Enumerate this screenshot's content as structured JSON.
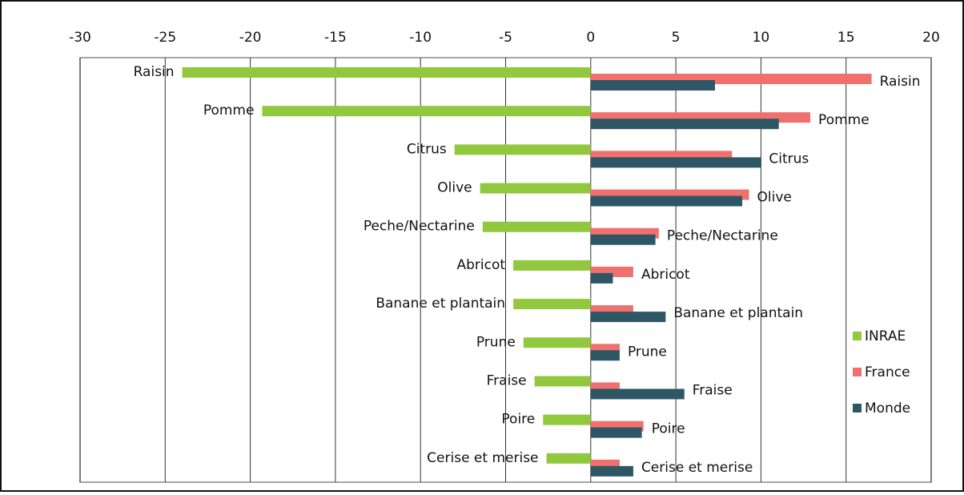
{
  "chart_data": {
    "type": "barh",
    "categories": [
      "Raisin",
      "Pomme",
      "Citrus",
      "Olive",
      "Peche/Nectarine",
      "Abricot",
      "Banane et plantain",
      "Prune",
      "Fraise",
      "Poire",
      "Cerise et merise"
    ],
    "series": [
      {
        "name": "INRAE",
        "color": "#92c83e",
        "values": [
          -24,
          -19.3,
          -8.0,
          -6.5,
          -6.35,
          -4.55,
          -4.55,
          -3.95,
          -3.3,
          -2.8,
          -2.6
        ]
      },
      {
        "name": "France",
        "color": "#f07070",
        "values": [
          16.5,
          12.9,
          8.3,
          9.3,
          4.0,
          2.5,
          2.5,
          1.7,
          1.7,
          3.1,
          1.7
        ]
      },
      {
        "name": "Monde",
        "color": "#2e5766",
        "values": [
          7.3,
          11.05,
          10.0,
          8.9,
          3.8,
          1.3,
          4.4,
          1.7,
          5.5,
          3.0,
          2.5
        ]
      }
    ],
    "xlim": [
      -30,
      20
    ],
    "xticks": [
      -30,
      -25,
      -20,
      -15,
      -10,
      -5,
      0,
      5,
      10,
      15,
      20
    ],
    "grid": true,
    "legend": "right"
  }
}
